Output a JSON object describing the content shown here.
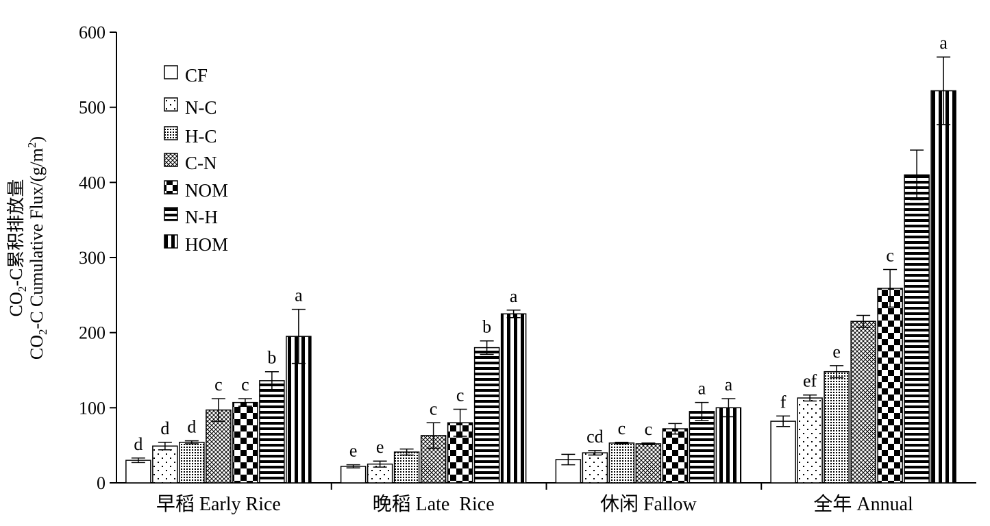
{
  "chart_data": {
    "type": "bar",
    "title": "",
    "ylabel_line1": "CO2-C累积排放量",
    "ylabel_line2": "CO2-C Cumulative Flux/(g/m2)",
    "ylim": [
      0,
      600
    ],
    "yticks": [
      "0",
      "100",
      "200",
      "300",
      "400",
      "500",
      "600"
    ],
    "categories": [
      "早稻 Early Rice",
      "晚稻 Late  Rice",
      "休闲 Fallow",
      "全年 Annual"
    ],
    "legend_position": "top-left",
    "series": [
      {
        "name": "CF",
        "pattern": "blank",
        "values": [
          30,
          22,
          31,
          82
        ],
        "errors": [
          3,
          2,
          7,
          7
        ],
        "labels": [
          "d",
          "e",
          "",
          "f"
        ]
      },
      {
        "name": "N-C",
        "pattern": "sparse-dots",
        "values": [
          49,
          25,
          40,
          113
        ],
        "errors": [
          5,
          4,
          3,
          4
        ],
        "labels": [
          "d",
          "e",
          "cd",
          "ef"
        ]
      },
      {
        "name": "H-C",
        "pattern": "dense-dots",
        "values": [
          54,
          41,
          53,
          148
        ],
        "errors": [
          2,
          4,
          1,
          8
        ],
        "labels": [
          "d",
          "",
          "c",
          "e"
        ]
      },
      {
        "name": "C-N",
        "pattern": "crosshatch",
        "values": [
          97,
          63,
          52,
          215
        ],
        "errors": [
          15,
          17,
          1,
          8
        ],
        "labels": [
          "c",
          "c",
          "c",
          ""
        ]
      },
      {
        "name": "NOM",
        "pattern": "checker",
        "values": [
          107,
          80,
          72,
          259
        ],
        "errors": [
          5,
          18,
          7,
          25
        ],
        "labels": [
          "c",
          "c",
          "",
          "c"
        ]
      },
      {
        "name": "N-H",
        "pattern": "h-stripes",
        "values": [
          136,
          180,
          95,
          410
        ],
        "errors": [
          12,
          9,
          12,
          33
        ],
        "labels": [
          "b",
          "b",
          "a",
          ""
        ]
      },
      {
        "name": "HOM",
        "pattern": "v-stripes",
        "values": [
          195,
          225,
          100,
          522
        ],
        "errors": [
          36,
          5,
          12,
          45
        ],
        "labels": [
          "a",
          "a",
          "a",
          "a"
        ]
      }
    ]
  }
}
